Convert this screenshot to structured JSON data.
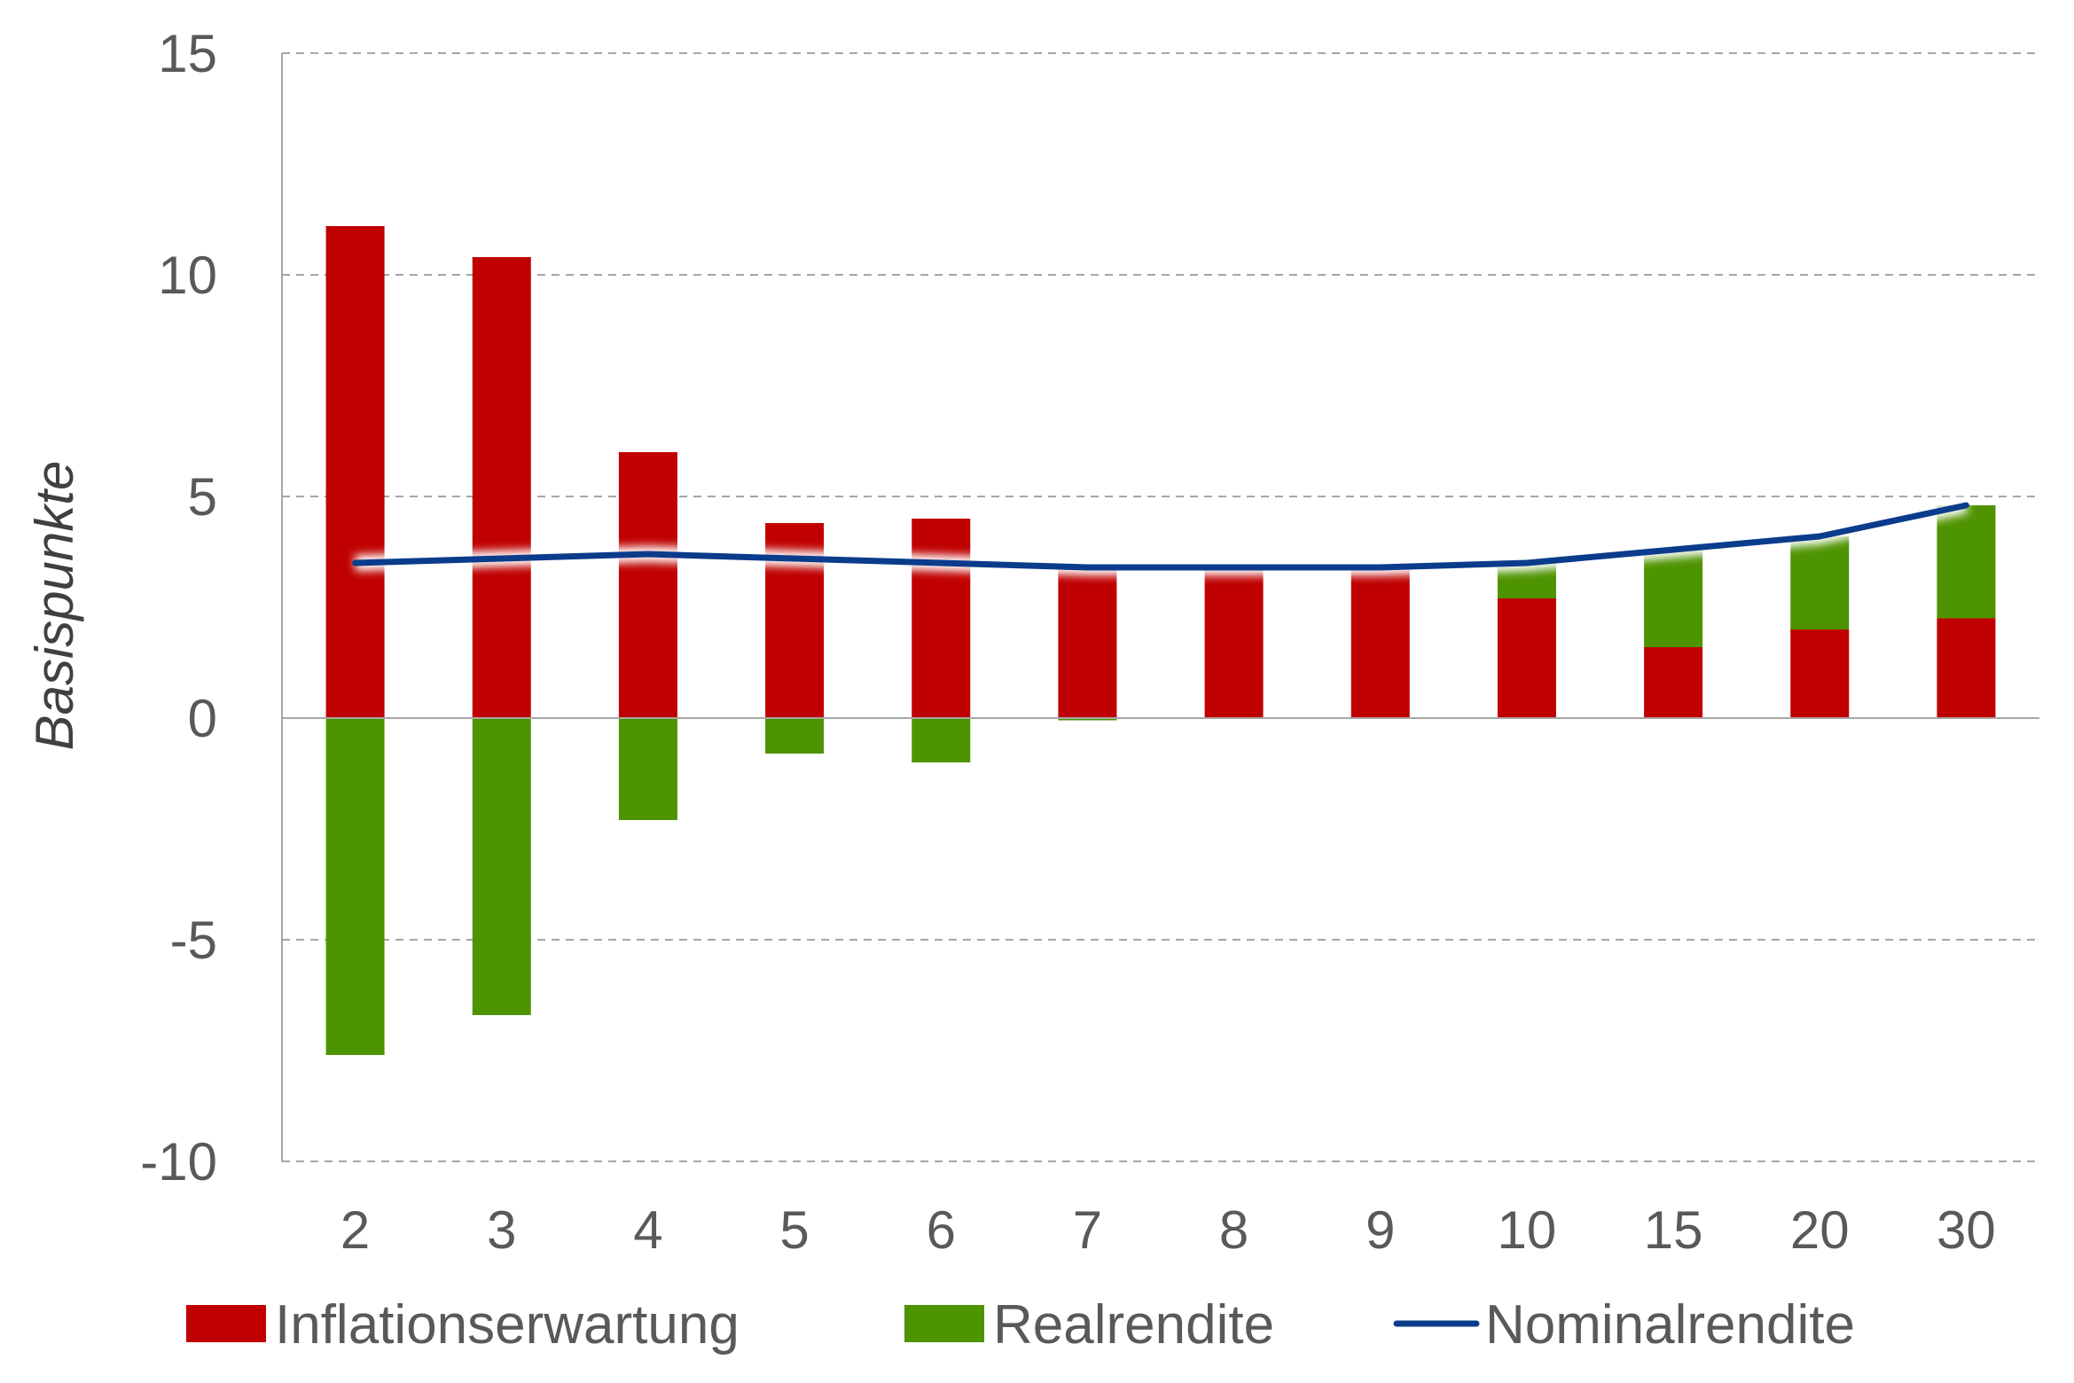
{
  "chart_data": {
    "type": "bar",
    "stacked": true,
    "categories": [
      "2",
      "3",
      "4",
      "5",
      "6",
      "7",
      "8",
      "9",
      "10",
      "15",
      "20",
      "30"
    ],
    "series": [
      {
        "name": "Inflationserwartung",
        "kind": "bar",
        "color": "#C00000",
        "values": [
          11.1,
          10.4,
          6.0,
          4.4,
          4.5,
          3.4,
          3.4,
          3.4,
          2.7,
          1.6,
          2.0,
          2.25
        ]
      },
      {
        "name": "Realrendite",
        "kind": "bar",
        "color": "#4E9300",
        "values": [
          -7.6,
          -6.7,
          -2.3,
          -0.8,
          -1.0,
          -0.05,
          0.0,
          0.05,
          0.8,
          2.2,
          2.1,
          2.55
        ]
      },
      {
        "name": "Nominalrendite",
        "kind": "line",
        "color": "#0B3C8C",
        "values": [
          3.5,
          3.6,
          3.7,
          3.6,
          3.5,
          3.4,
          3.4,
          3.4,
          3.5,
          3.8,
          4.1,
          4.8
        ]
      }
    ],
    "title": "",
    "xlabel": "",
    "ylabel": "Basispunkte",
    "ylim": [
      -10,
      15
    ],
    "yticks": [
      -10,
      -5,
      0,
      5,
      10,
      15
    ],
    "grid": true,
    "legend_position": "bottom"
  }
}
